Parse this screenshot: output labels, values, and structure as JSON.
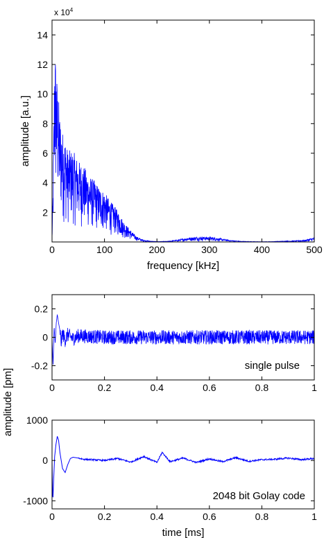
{
  "chart_data": [
    {
      "type": "line",
      "multiplier_base": "x 10",
      "multiplier_exp": "4",
      "xlabel": "frequency [kHz]",
      "ylabel": "amplitude [a.u.]",
      "xlim": [
        0,
        500
      ],
      "ylim": [
        0,
        150000
      ],
      "x_ticks": [
        0,
        100,
        200,
        300,
        400,
        500
      ],
      "x_tick_labels": [
        "0",
        "100",
        "200",
        "300",
        "400",
        "500"
      ],
      "y_ticks": [
        20000,
        40000,
        60000,
        80000,
        100000,
        120000,
        140000
      ],
      "y_tick_labels": [
        "2",
        "4",
        "6",
        "8",
        "10",
        "12",
        "14"
      ],
      "grid": false,
      "line_color": "#0000ff",
      "series": [
        {
          "x": [
            0,
            2,
            4,
            5,
            8,
            10,
            12,
            15,
            20,
            25,
            30,
            40,
            50,
            60,
            70,
            80,
            90,
            100,
            110,
            120,
            130,
            140,
            150,
            160,
            170,
            180,
            190,
            200,
            220,
            240,
            260,
            280,
            300,
            320,
            340,
            360,
            380,
            400,
            420,
            440,
            460,
            480,
            500
          ],
          "values": [
            4000,
            40000,
            105000,
            138000,
            118000,
            108000,
            100000,
            85000,
            75000,
            70000,
            62000,
            62000,
            55000,
            52000,
            45000,
            42000,
            37000,
            34000,
            28000,
            24000,
            18000,
            12000,
            8000,
            4000,
            2000,
            1000,
            500,
            300,
            500,
            1500,
            3000,
            3500,
            3500,
            2500,
            1200,
            500,
            300,
            200,
            300,
            600,
            800,
            1200,
            3000
          ]
        }
      ]
    },
    {
      "type": "line",
      "xlim": [
        0,
        1
      ],
      "ylim": [
        -0.3,
        0.3
      ],
      "x_ticks": [
        0,
        0.2,
        0.4,
        0.6,
        0.8,
        1
      ],
      "x_tick_labels": [
        "0",
        "0.2",
        "0.4",
        "0.6",
        "0.8",
        "1"
      ],
      "y_ticks": [
        -0.2,
        0,
        0.2
      ],
      "y_tick_labels": [
        "-0.2",
        "0",
        "0.2"
      ],
      "annotation": "single pulse",
      "grid": false,
      "line_color": "#0000ff",
      "series": [
        {
          "x": [
            0,
            0.004,
            0.008,
            0.012,
            0.016,
            0.02,
            0.025,
            0.03,
            0.035,
            0.04,
            0.05,
            0.06,
            0.08,
            0.1,
            0.2,
            0.3,
            0.4,
            0.5,
            0.6,
            0.7,
            0.8,
            0.9,
            1.0
          ],
          "values": [
            0,
            -0.2,
            0.08,
            -0.05,
            0.1,
            0.16,
            0.1,
            0.05,
            -0.04,
            0.03,
            -0.02,
            0.02,
            -0.01,
            0.01,
            0,
            0,
            0,
            0,
            0,
            0,
            0,
            0,
            0
          ],
          "noise_amplitude": 0.05
        }
      ]
    },
    {
      "type": "line",
      "xlabel": "time [ms]",
      "xlim": [
        0,
        1
      ],
      "ylim": [
        -1200,
        1000
      ],
      "x_ticks": [
        0,
        0.2,
        0.4,
        0.6,
        0.8,
        1
      ],
      "x_tick_labels": [
        "0",
        "0.2",
        "0.4",
        "0.6",
        "0.8",
        "1"
      ],
      "y_ticks": [
        -1000,
        0,
        1000
      ],
      "y_tick_labels": [
        "-1000",
        "0",
        "1000"
      ],
      "annotation": "2048 bit Golay code",
      "grid": false,
      "line_color": "#0000ff",
      "series": [
        {
          "x": [
            0,
            0.003,
            0.006,
            0.01,
            0.015,
            0.02,
            0.025,
            0.03,
            0.04,
            0.05,
            0.06,
            0.07,
            0.08,
            0.1,
            0.12,
            0.15,
            0.2,
            0.25,
            0.3,
            0.35,
            0.4,
            0.42,
            0.45,
            0.5,
            0.55,
            0.6,
            0.65,
            0.7,
            0.75,
            0.8,
            0.85,
            0.9,
            0.95,
            1.0
          ],
          "values": [
            0,
            -1050,
            -500,
            100,
            400,
            600,
            500,
            200,
            -200,
            -300,
            -100,
            50,
            80,
            60,
            30,
            20,
            0,
            50,
            -40,
            100,
            -50,
            200,
            -30,
            60,
            -50,
            40,
            -30,
            70,
            -20,
            20,
            30,
            60,
            20,
            50
          ]
        }
      ],
      "shared_ylabel": "amplitude [pm]"
    }
  ]
}
